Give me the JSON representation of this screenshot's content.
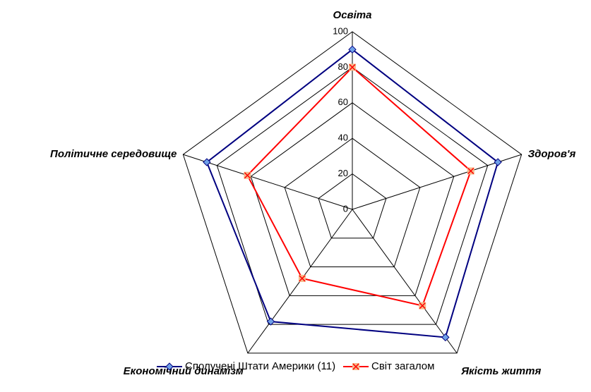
{
  "chart_data": {
    "type": "radar",
    "categories": [
      "Освіта",
      "Здоров'я",
      "Якість життя",
      "Економічний динамізм",
      "Політичне середовище"
    ],
    "series": [
      {
        "name": "Сполучені Штати Америки (11)",
        "color": "#000080",
        "marker": "diamond",
        "marker_color": "#6fa0e8",
        "values": [
          90,
          86,
          89,
          78,
          86
        ]
      },
      {
        "name": "Світ загалом",
        "color": "#ff0000",
        "marker": "x-square",
        "marker_color": "#f6b98a",
        "values": [
          80,
          70,
          67,
          48,
          62
        ]
      }
    ],
    "rlim": [
      0,
      100
    ],
    "rticks": [
      0,
      20,
      40,
      60,
      80,
      100
    ],
    "grid": true,
    "legend": "bottom"
  }
}
